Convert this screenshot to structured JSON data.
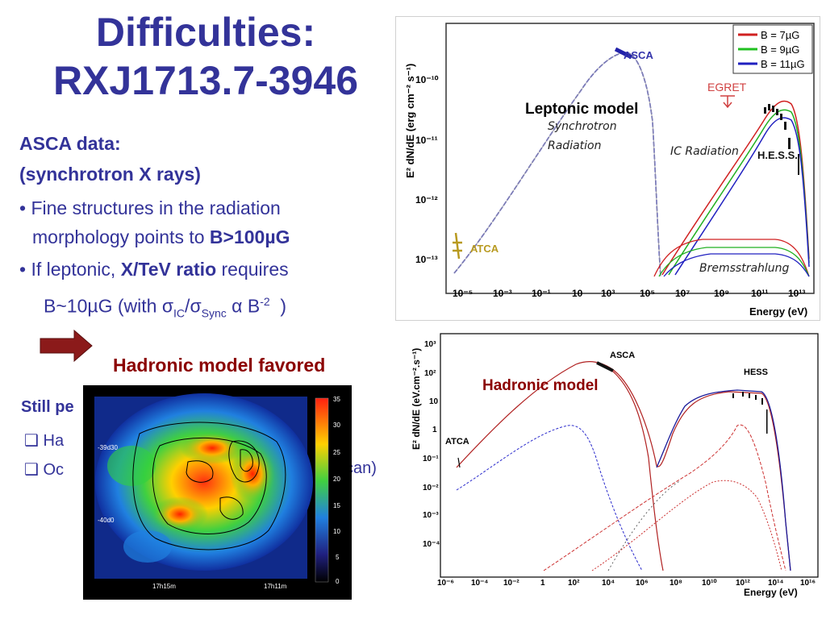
{
  "slide": {
    "title_line1": "Difficulties:",
    "title_line2": "RXJ1713.7-3946",
    "asca_data": "ASCA data:",
    "synchrotron": "(synchrotron X rays)",
    "bullet1_text_a": "Fine structures in the radiation",
    "bullet1_text_b": "morphology points to",
    "bullet1_bold": "B>100µG",
    "bullet2_text_a": "If leptonic,",
    "bullet2_bold": "X/TeV ratio",
    "bullet2_text_b": "requires",
    "bullet2_line2": "B~10µG (with",
    "sigma_ic": "σ",
    "sub_ic": "IC",
    "sigma_sync": "σ",
    "sub_sync": "Sync",
    "alpha": "α",
    "b_exp": "B",
    "sup_exp": "-2",
    "close_paren": ")",
    "hadronic_favored": "Hadronic model favored",
    "still_label": "Still pe",
    "bullet3_fragment": "Ha",
    "bullet4_fragment": "Oc",
    "bullet4_tail": "can)"
  },
  "lepto_plot": {
    "model_label": "Leptonic model",
    "ylabel": "E² dN/dE (erg cm⁻² s⁻¹)",
    "xlabel": "Energy (eV)",
    "y_ticks": [
      "10⁻¹⁰",
      "10⁻¹¹",
      "10⁻¹²",
      "10⁻¹³"
    ],
    "x_ticks": [
      "10⁻⁵",
      "10⁻³",
      "10⁻¹",
      "10",
      "10³",
      "10⁵",
      "10⁷",
      "10⁹",
      "10¹¹",
      "10¹³"
    ],
    "annotations": {
      "asca": "ASCA",
      "egret": "EGRET",
      "synchrotron": "Synchrotron",
      "radiation": "Radiation",
      "ic": "IC Radiation",
      "hess": "H.E.S.S.",
      "atca": "ATCA",
      "brems": "Bremsstrahlung"
    },
    "legend": [
      {
        "label": "B = 7µG",
        "color": "#d02020"
      },
      {
        "label": "B = 9µG",
        "color": "#20c020"
      },
      {
        "label": "B = 11µG",
        "color": "#2020c0"
      }
    ]
  },
  "hadro_plot": {
    "model_label": "Hadronic model",
    "ylabel": "E² dN/dE (eV.cm⁻².s⁻¹)",
    "xlabel": "Energy (eV)",
    "y_ticks": [
      "10³",
      "10²",
      "10",
      "1",
      "10⁻¹",
      "10⁻²",
      "10⁻³",
      "10⁻⁴"
    ],
    "x_ticks": [
      "10⁻⁶",
      "10⁻⁴",
      "10⁻²",
      "1",
      "10²",
      "10⁴",
      "10⁶",
      "10⁸",
      "10¹⁰",
      "10¹²",
      "10¹⁴",
      "10¹⁶"
    ],
    "annotations": {
      "asca": "ASCA",
      "hess": "HESS",
      "atca": "ATCA"
    }
  },
  "map": {
    "colorbar_ticks": [
      "35",
      "30",
      "25",
      "20",
      "15",
      "10",
      "5",
      "0"
    ],
    "dec_labels": [
      "-39d30",
      "-40d0"
    ],
    "ra_labels": [
      "17h15m",
      "17h11m"
    ]
  },
  "colors": {
    "title": "#333399",
    "favored": "#8b0000",
    "arrow": "#8b1a1a"
  }
}
